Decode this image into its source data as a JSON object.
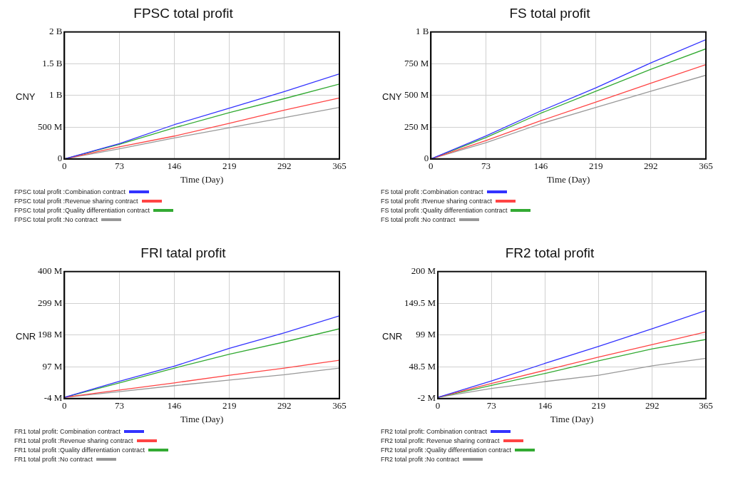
{
  "chart_data": [
    {
      "type": "line",
      "title": "FPSC total profit",
      "xlabel": "Time (Day)",
      "ylabel": "CNY",
      "x": [
        0,
        73,
        146,
        219,
        292,
        365
      ],
      "xlim": [
        0,
        365
      ],
      "xticks": [
        0,
        73,
        146,
        219,
        292,
        365
      ],
      "ylim": [
        0,
        2000000000
      ],
      "yticks": [
        {
          "value": 0,
          "label": "0"
        },
        {
          "value": 500000000,
          "label": "500 M"
        },
        {
          "value": 1000000000,
          "label": "1 B"
        },
        {
          "value": 1500000000,
          "label": "1.5 B"
        },
        {
          "value": 2000000000,
          "label": "2 B"
        }
      ],
      "grid": true,
      "legend": "bottom",
      "marker": "none",
      "line_style": "solid",
      "series": [
        {
          "name": "FPSC total profit :Combination contract",
          "color": "#3333ff",
          "values": [
            0,
            240000000,
            540000000,
            800000000,
            1060000000,
            1340000000
          ]
        },
        {
          "name": "FPSC total profit :Revenue sharing contract",
          "color": "#ff4444",
          "values": [
            0,
            190000000,
            360000000,
            560000000,
            770000000,
            960000000
          ]
        },
        {
          "name": "FPSC total profit :Quality differentiation contract",
          "color": "#33aa33",
          "values": [
            0,
            230000000,
            490000000,
            730000000,
            950000000,
            1180000000
          ]
        },
        {
          "name": "FPSC total profit :No contract",
          "color": "#999999",
          "values": [
            0,
            160000000,
            330000000,
            490000000,
            650000000,
            810000000
          ]
        }
      ]
    },
    {
      "type": "line",
      "title": "FS total profit",
      "xlabel": "Time (Day)",
      "ylabel": "CNY",
      "x": [
        0,
        73,
        146,
        219,
        292,
        365
      ],
      "xlim": [
        0,
        365
      ],
      "xticks": [
        0,
        73,
        146,
        219,
        292,
        365
      ],
      "ylim": [
        0,
        1000000000
      ],
      "yticks": [
        {
          "value": 0,
          "label": "0"
        },
        {
          "value": 250000000,
          "label": "250 M"
        },
        {
          "value": 500000000,
          "label": "500 M"
        },
        {
          "value": 750000000,
          "label": "750 M"
        },
        {
          "value": 1000000000,
          "label": "1 B"
        }
      ],
      "grid": true,
      "legend": "bottom",
      "marker": "none",
      "line_style": "solid",
      "series": [
        {
          "name": "FS total profit :Combination contract",
          "color": "#3333ff",
          "values": [
            0,
            181000000,
            378000000,
            560000000,
            757000000,
            940000000
          ]
        },
        {
          "name": "FS total profit :Rvenue sharing contract",
          "color": "#ff4444",
          "values": [
            0,
            144000000,
            301000000,
            447000000,
            597000000,
            743000000
          ]
        },
        {
          "name": "FS total profit :Quality differentiation contract",
          "color": "#33aa33",
          "values": [
            0,
            168000000,
            360000000,
            533000000,
            706000000,
            867000000
          ]
        },
        {
          "name": "FS total profit :No contract",
          "color": "#999999",
          "values": [
            0,
            128000000,
            277000000,
            405000000,
            533000000,
            659000000
          ]
        }
      ]
    },
    {
      "type": "line",
      "title": "FRI tatal profit",
      "xlabel": "Time (Day)",
      "ylabel": "CNR",
      "x": [
        0,
        73,
        146,
        219,
        292,
        365
      ],
      "xlim": [
        0,
        365
      ],
      "xticks": [
        0,
        73,
        146,
        219,
        292,
        365
      ],
      "ylim": [
        -4000000,
        400000000
      ],
      "yticks": [
        {
          "value": -4000000,
          "label": "-4 M"
        },
        {
          "value": 97000000,
          "label": "97 M"
        },
        {
          "value": 198000000,
          "label": "198 M"
        },
        {
          "value": 299000000,
          "label": "299 M"
        },
        {
          "value": 400000000,
          "label": "400 M"
        }
      ],
      "grid": true,
      "legend": "bottom",
      "marker": "none",
      "line_style": "solid",
      "series": [
        {
          "name": "FR1 total profit: Combination contract",
          "color": "#3333ff",
          "values": [
            0,
            51000000,
            99000000,
            156000000,
            205000000,
            259000000
          ]
        },
        {
          "name": "FR1 total profit :Revenue sharing contract",
          "color": "#ff4444",
          "values": [
            0,
            23000000,
            46000000,
            70000000,
            93000000,
            118000000
          ]
        },
        {
          "name": "FR1 total profit :Quality differentiation contract",
          "color": "#33aa33",
          "values": [
            0,
            46000000,
            93000000,
            137000000,
            176000000,
            218000000
          ]
        },
        {
          "name": "FR1 total profit :No contract",
          "color": "#999999",
          "values": [
            0,
            18000000,
            37000000,
            55000000,
            72000000,
            93000000
          ]
        }
      ]
    },
    {
      "type": "line",
      "title": "FR2 total profit",
      "xlabel": "Time (Day)",
      "ylabel": "CNR",
      "x": [
        0,
        73,
        146,
        219,
        292,
        365
      ],
      "xlim": [
        0,
        365
      ],
      "xticks": [
        0,
        73,
        146,
        219,
        292,
        365
      ],
      "ylim": [
        -2000000,
        200000000
      ],
      "yticks": [
        {
          "value": -2000000,
          "label": "-2 M"
        },
        {
          "value": 48500000,
          "label": "48.5 M"
        },
        {
          "value": 99000000,
          "label": "99 M"
        },
        {
          "value": 149500000,
          "label": "149.5 M"
        },
        {
          "value": 200000000,
          "label": "200 M"
        }
      ],
      "grid": true,
      "legend": "bottom",
      "marker": "none",
      "line_style": "solid",
      "series": [
        {
          "name": "FR2 total profit: Combination contract",
          "color": "#3333ff",
          "values": [
            0,
            26000000,
            54000000,
            81000000,
            109000000,
            138000000
          ]
        },
        {
          "name": "FR2 total profit: Revenue sharing contract",
          "color": "#ff4444",
          "values": [
            0,
            22000000,
            43000000,
            64000000,
            84000000,
            104000000
          ]
        },
        {
          "name": "FR2 total profit :Quality differentiation contract",
          "color": "#33aa33",
          "values": [
            0,
            19000000,
            38000000,
            58000000,
            77000000,
            92000000
          ]
        },
        {
          "name": "FR2 total profit :No contract",
          "color": "#999999",
          "values": [
            0,
            14000000,
            25000000,
            35000000,
            50000000,
            62000000
          ]
        }
      ]
    }
  ]
}
